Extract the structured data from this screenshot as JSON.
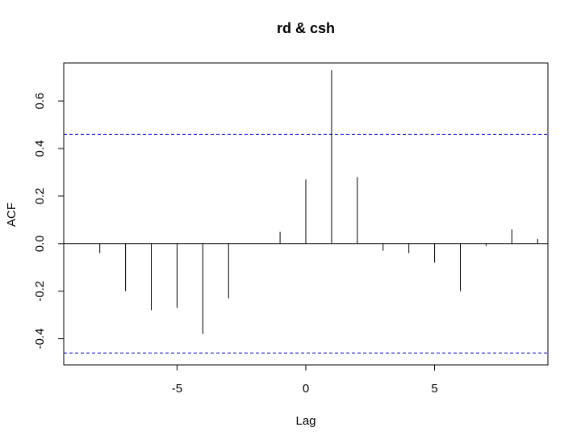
{
  "chart_data": {
    "type": "bar",
    "title": "rd & csh",
    "xlabel": "Lag",
    "ylabel": "ACF",
    "xlim": [
      -9.4,
      9.4
    ],
    "ylim": [
      -0.51,
      0.76
    ],
    "x_ticks": [
      -5,
      0,
      5
    ],
    "y_ticks": [
      -0.4,
      -0.2,
      0.0,
      0.2,
      0.4,
      0.6
    ],
    "x_tick_labels": [
      "-5",
      "0",
      "5"
    ],
    "y_tick_labels": [
      "-0.4",
      "-0.2",
      "0.0",
      "0.2",
      "0.4",
      "0.6"
    ],
    "lags": [
      -9,
      -8,
      -7,
      -6,
      -5,
      -4,
      -3,
      -2,
      -1,
      0,
      1,
      2,
      3,
      4,
      5,
      6,
      7,
      8,
      9
    ],
    "values": [
      0.0,
      -0.04,
      -0.2,
      -0.28,
      -0.27,
      -0.38,
      -0.23,
      0.0,
      0.05,
      0.27,
      0.73,
      0.28,
      -0.03,
      -0.04,
      -0.08,
      -0.2,
      -0.01,
      0.06,
      0.02
    ],
    "confidence_bounds": [
      0.46,
      -0.46
    ],
    "confidence_color": "#0000cc",
    "zero_line": true,
    "grid": false
  }
}
